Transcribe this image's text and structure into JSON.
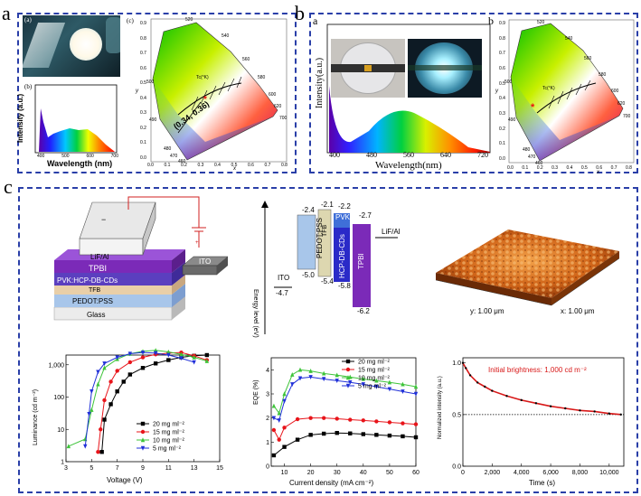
{
  "panel_letters": {
    "a": "a",
    "b": "b",
    "c": "c"
  },
  "panel_a": {
    "sub_a": "(a)",
    "sub_b": "(b)",
    "sub_c": "(c)",
    "spectrum_ylabel": "Intensity (a.u.)",
    "spectrum_xlabel": "Wavelength (nm)",
    "spectrum_ticks": [
      "400",
      "500",
      "600",
      "700"
    ],
    "cie_coord": "(0.34, 0.36)",
    "cie_tc_label": "Tc(°K)",
    "cie_x_ticks": [
      "0.0",
      "0.1",
      "0.2",
      "0.3",
      "0.4",
      "0.5",
      "0.6",
      "0.7",
      "0.8"
    ],
    "cie_y_ticks": [
      "0.0",
      "0.1",
      "0.2",
      "0.3",
      "0.4",
      "0.5",
      "0.6",
      "0.7",
      "0.8",
      "0.9"
    ],
    "cie_wavelengths": [
      "520",
      "540",
      "560",
      "580",
      "600",
      "620",
      "700",
      "500",
      "490",
      "480",
      "470",
      "460"
    ],
    "cie_axis_x": "x",
    "cie_axis_y": "y"
  },
  "panel_b": {
    "sub_a": "a",
    "sub_b": "b",
    "spectrum_ylabel": "Intensity(a.u.)",
    "spectrum_xlabel": "Wavelength(nm)",
    "spectrum_ticks": [
      "400",
      "480",
      "560",
      "640",
      "720"
    ],
    "cie_tc_label": "Tc(°K)",
    "cie_x_ticks": [
      "0.0",
      "0.1",
      "0.2",
      "0.3",
      "0.4",
      "0.5",
      "0.6",
      "0.7",
      "0.8"
    ],
    "cie_y_ticks": [
      "0.0",
      "0.1",
      "0.2",
      "0.3",
      "0.4",
      "0.5",
      "0.6",
      "0.7",
      "0.8",
      "0.9"
    ],
    "cie_wavelengths": [
      "520",
      "540",
      "560",
      "580",
      "600",
      "620",
      "700",
      "500",
      "490",
      "480",
      "470",
      "460"
    ],
    "cie_axis_x": "x",
    "cie_axis_y": "y"
  },
  "panel_c": {
    "device_layers": [
      "LiF/Al",
      "TPBI",
      "PVK:HCP-DB-CDs",
      "TFB",
      "PEDOT:PSS",
      "Glass"
    ],
    "ito_label": "ITO",
    "energy_axis_label": "Energy level (eV)",
    "energy": {
      "ito": {
        "name": "ITO",
        "value": "-4.7"
      },
      "pedot": {
        "name": "PEDOT:PSS",
        "top": "-2.4",
        "bottom": "-5.0"
      },
      "tfb": {
        "name": "TFB",
        "top": "-2.1",
        "bottom": "-5.4"
      },
      "pvk": {
        "name": "PVK",
        "top": "-2.2"
      },
      "hcp": {
        "name": "HCP-DB-CDs",
        "bottom": "-5.8"
      },
      "tpbi": {
        "name": "TPBI",
        "top": "-2.7",
        "bottom": "-6.2"
      },
      "lif": {
        "name": "LiF/Al"
      }
    },
    "afm_y_label": "y: 1.00 μm",
    "afm_x_label": "x: 1.00 μm"
  },
  "chart_data": [
    {
      "type": "line",
      "title": "",
      "xlabel": "Voltage (V)",
      "ylabel": "Luminance (cd m⁻²)",
      "xlim": [
        3,
        15
      ],
      "ylim": [
        1,
        2000
      ],
      "yscale": "log",
      "x_ticks": [
        "3",
        "5",
        "7",
        "9",
        "11",
        "13",
        "15"
      ],
      "y_ticks": [
        "1",
        "10",
        "100",
        "1,000"
      ],
      "legend_position": "bottom-right",
      "series": [
        {
          "name": "20 mg ml⁻²",
          "color": "#000000",
          "marker": "square",
          "x": [
            5.8,
            6.0,
            6.5,
            7.0,
            7.5,
            8.0,
            9.0,
            10.0,
            11.0,
            12.0,
            13.0,
            14.0
          ],
          "y": [
            2,
            20,
            60,
            150,
            300,
            500,
            800,
            1100,
            1400,
            1700,
            1900,
            2000
          ]
        },
        {
          "name": "15 mg ml⁻²",
          "color": "#e8141a",
          "marker": "circle",
          "x": [
            5.5,
            5.7,
            6.0,
            6.5,
            7.0,
            8.0,
            9.0,
            10.0,
            11.0,
            12.0,
            13.0,
            14.0
          ],
          "y": [
            2,
            10,
            80,
            300,
            650,
            1200,
            1700,
            2100,
            2300,
            2400,
            1900,
            1400
          ]
        },
        {
          "name": "10 mg ml⁻²",
          "color": "#3ec43a",
          "marker": "triangle-up",
          "x": [
            3.2,
            4.5,
            5.0,
            5.5,
            6.0,
            7.0,
            8.0,
            9.0,
            10.0,
            11.0,
            12.0,
            13.0,
            14.0
          ],
          "y": [
            3,
            5,
            40,
            250,
            800,
            1500,
            2200,
            2600,
            2800,
            2500,
            2100,
            1700,
            1300
          ]
        },
        {
          "name": "5  mg ml⁻²",
          "color": "#2030d8",
          "marker": "triangle-down",
          "x": [
            4.5,
            4.8,
            5.0,
            5.5,
            6.0,
            7.0,
            8.0,
            9.0,
            10.0,
            11.0,
            12.0,
            13.0
          ],
          "y": [
            3,
            30,
            150,
            600,
            1100,
            1700,
            2200,
            2400,
            2300,
            2000,
            1600,
            1200
          ]
        }
      ]
    },
    {
      "type": "line",
      "title": "",
      "xlabel": "Current density (mA cm⁻²)",
      "ylabel": "EQE (%)",
      "xlim": [
        5,
        60
      ],
      "ylim": [
        0,
        4.5
      ],
      "x_ticks": [
        "10",
        "20",
        "30",
        "40",
        "50",
        "60"
      ],
      "y_ticks": [
        "0",
        "1",
        "2",
        "3",
        "4"
      ],
      "legend_position": "top-right",
      "series": [
        {
          "name": "20 mg ml⁻²",
          "color": "#000000",
          "marker": "square",
          "x": [
            6,
            10,
            15,
            20,
            25,
            30,
            35,
            40,
            45,
            50,
            55,
            60
          ],
          "y": [
            0.45,
            0.8,
            1.1,
            1.3,
            1.35,
            1.38,
            1.36,
            1.33,
            1.3,
            1.27,
            1.24,
            1.2
          ]
        },
        {
          "name": "15 mg ml⁻²",
          "color": "#e8141a",
          "marker": "circle",
          "x": [
            6,
            8,
            10,
            15,
            20,
            25,
            30,
            35,
            40,
            45,
            50,
            55,
            60
          ],
          "y": [
            1.5,
            1.1,
            1.6,
            1.95,
            2.0,
            2.0,
            1.97,
            1.93,
            1.9,
            1.86,
            1.82,
            1.78,
            1.74
          ]
        },
        {
          "name": "10 mg ml⁻²",
          "color": "#3ec43a",
          "marker": "triangle-up",
          "x": [
            6,
            8,
            10,
            13,
            16,
            20,
            25,
            30,
            35,
            40,
            45,
            50,
            55,
            60
          ],
          "y": [
            2.5,
            2.2,
            3.0,
            3.8,
            4.0,
            3.95,
            3.85,
            3.78,
            3.7,
            3.62,
            3.55,
            3.48,
            3.4,
            3.3
          ]
        },
        {
          "name": "5  mg ml⁻²",
          "color": "#2030d8",
          "marker": "triangle-down",
          "x": [
            6,
            8,
            10,
            13,
            16,
            20,
            25,
            30,
            35,
            40,
            45,
            50,
            55,
            60
          ],
          "y": [
            2.0,
            1.9,
            2.7,
            3.4,
            3.65,
            3.7,
            3.62,
            3.55,
            3.48,
            3.4,
            3.3,
            3.2,
            3.1,
            3.0
          ]
        }
      ]
    },
    {
      "type": "line",
      "title": "",
      "xlabel": "Time (s)",
      "ylabel": "Normalized intensity (a.u.)",
      "xlim": [
        0,
        11000
      ],
      "ylim": [
        0,
        1.05
      ],
      "x_ticks": [
        "0",
        "2,000",
        "4,000",
        "6,000",
        "8,000",
        "10,000"
      ],
      "y_ticks": [
        "0.0",
        "0.5",
        "1.0"
      ],
      "annotation": "Initial brightness: 1,000 cd m⁻²",
      "reference_line": 0.5,
      "series": [
        {
          "name": "",
          "color": "#000000",
          "x": [
            0,
            200,
            500,
            1000,
            1500,
            2000,
            3000,
            4000,
            5000,
            6000,
            7000,
            8000,
            9000,
            10000,
            10800
          ],
          "y": [
            1.0,
            0.95,
            0.88,
            0.81,
            0.77,
            0.73,
            0.68,
            0.64,
            0.61,
            0.58,
            0.56,
            0.54,
            0.53,
            0.51,
            0.5
          ]
        }
      ]
    }
  ]
}
